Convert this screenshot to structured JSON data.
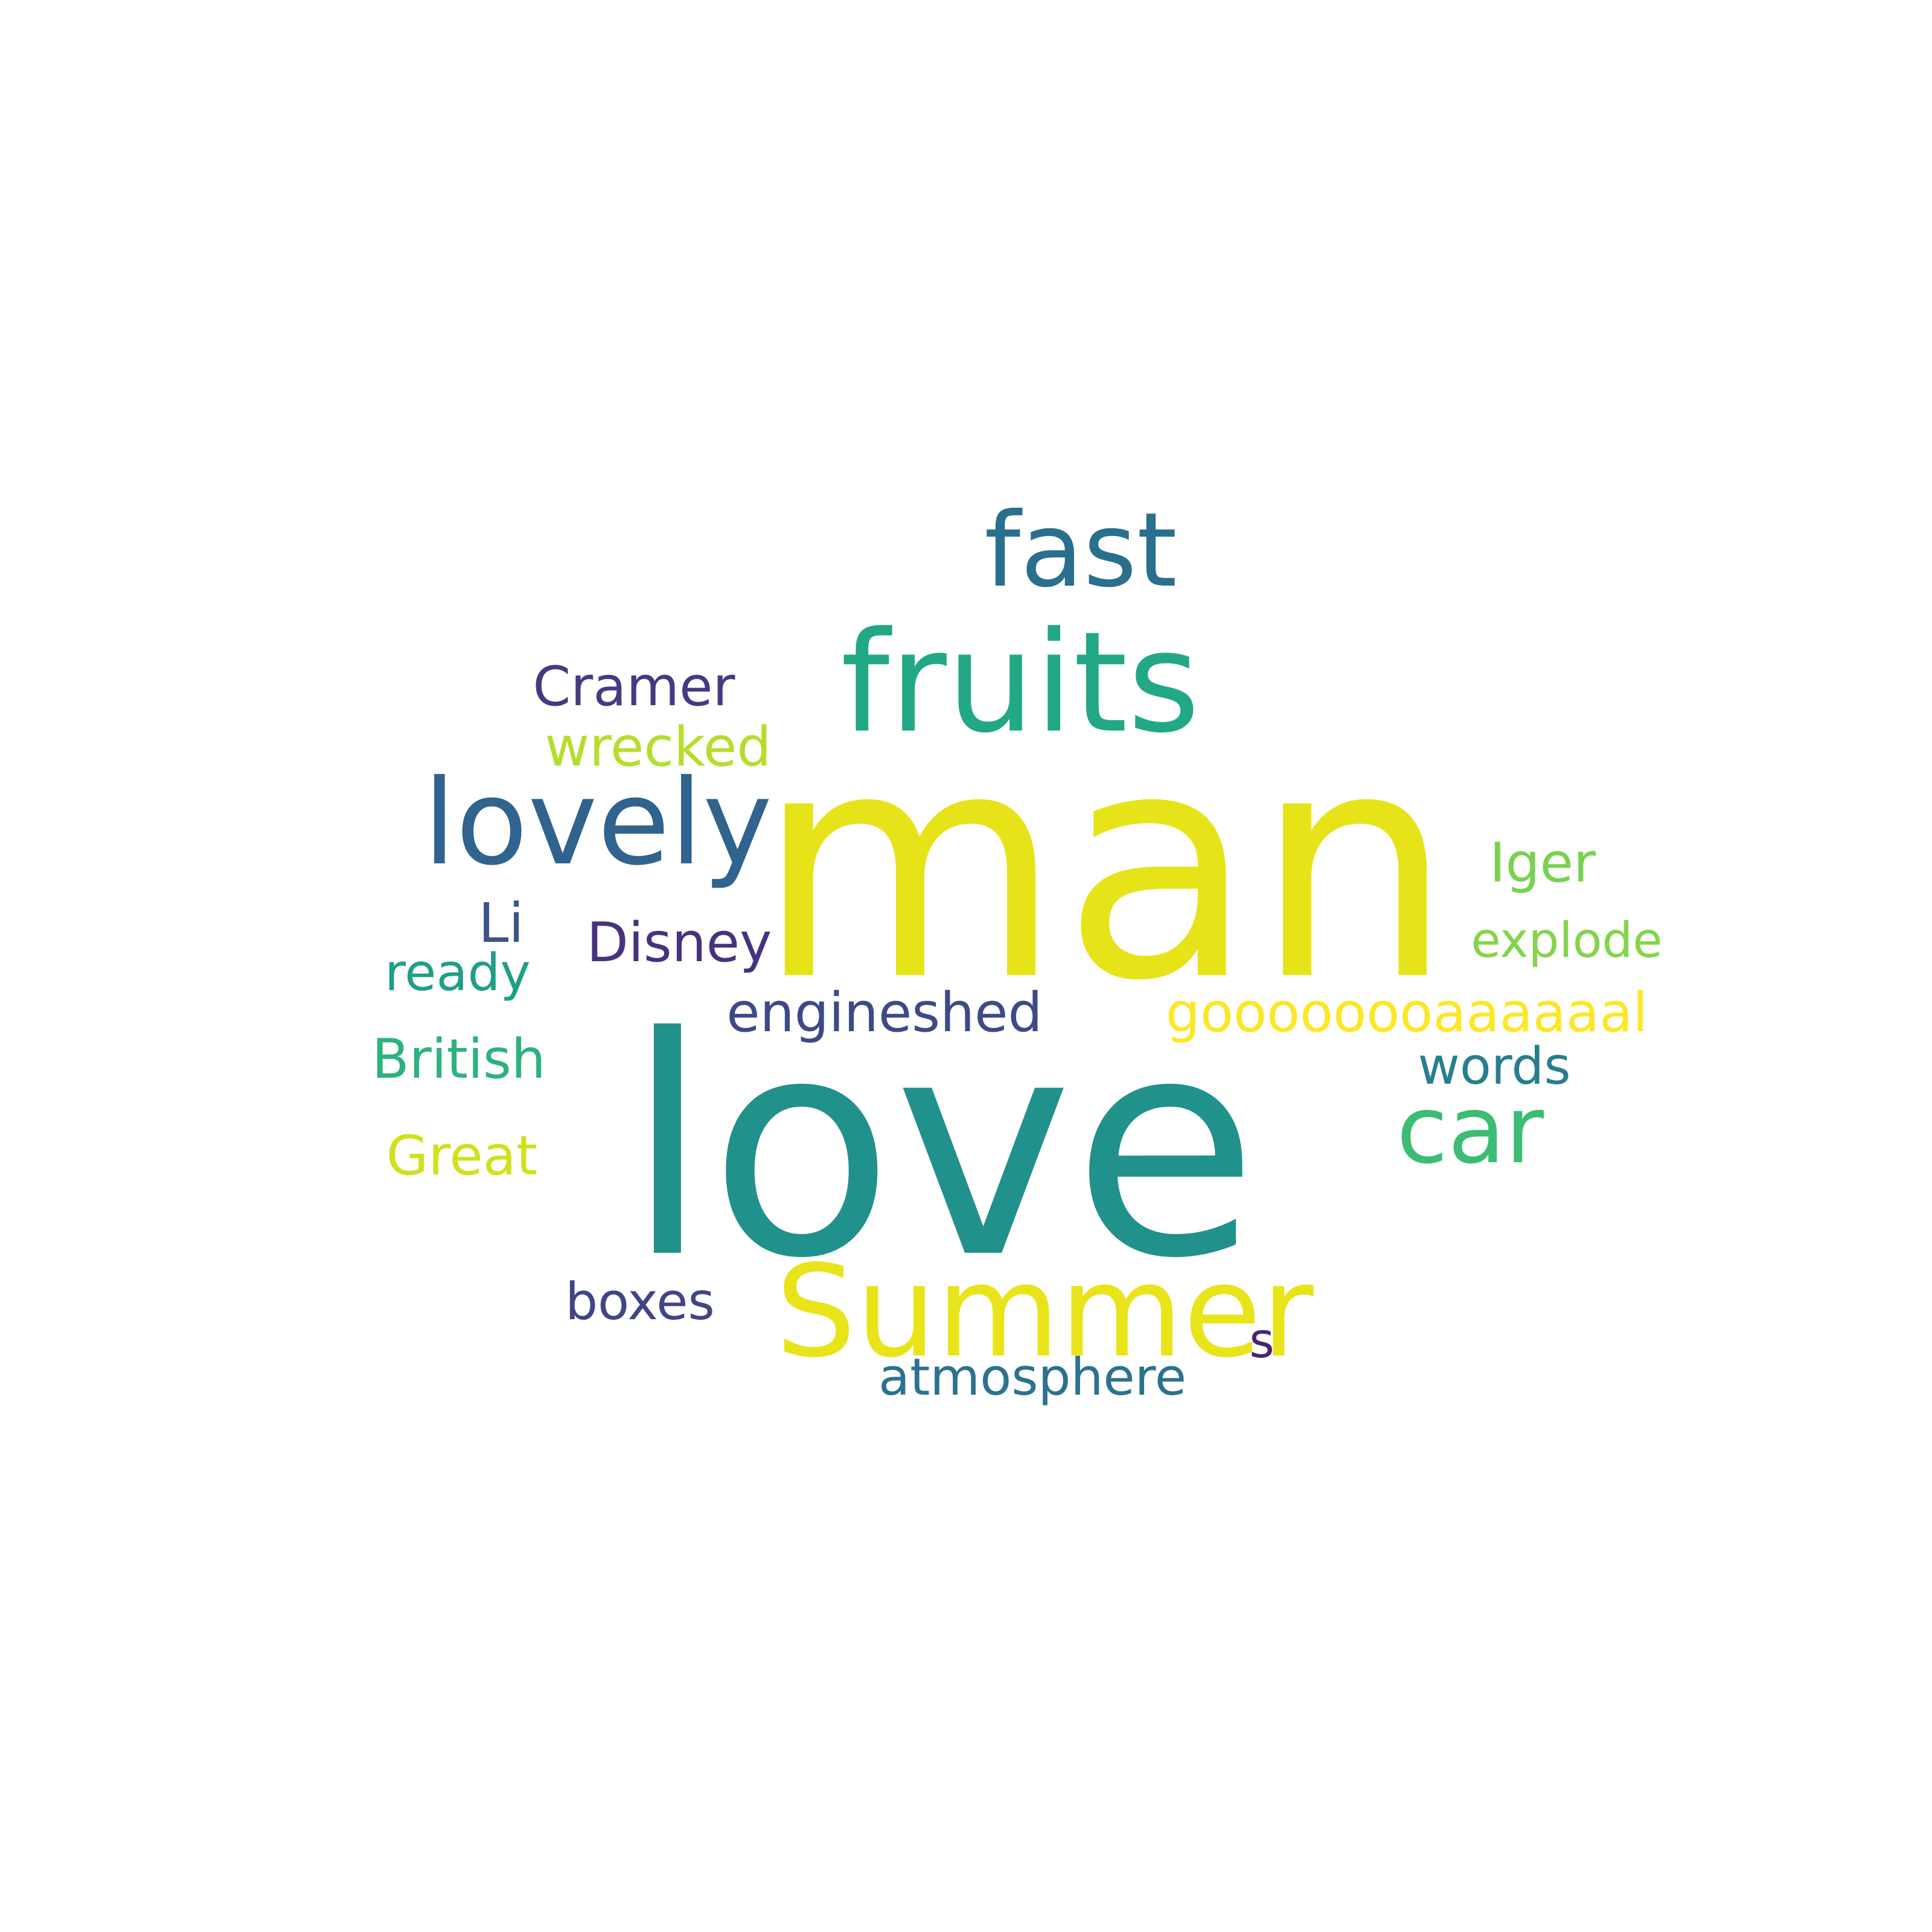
{
  "word_cloud": {
    "words": [
      {
        "text": "man",
        "color": "#e6e419"
      },
      {
        "text": "love",
        "color": "#21918c"
      },
      {
        "text": "fruits",
        "color": "#22a884"
      },
      {
        "text": "fast",
        "color": "#2a6f8e"
      },
      {
        "text": "lovely",
        "color": "#30638e"
      },
      {
        "text": "Summer",
        "color": "#e8e419"
      },
      {
        "text": "car",
        "color": "#3cbc74"
      },
      {
        "text": "Cramer",
        "color": "#443a83"
      },
      {
        "text": "wrecked",
        "color": "#b5de2b"
      },
      {
        "text": "Iger",
        "color": "#7ad151"
      },
      {
        "text": "Li",
        "color": "#3b528b"
      },
      {
        "text": "Disney",
        "color": "#46327e"
      },
      {
        "text": "explode",
        "color": "#84d44b"
      },
      {
        "text": "ready",
        "color": "#1f9e89"
      },
      {
        "text": "engineshed",
        "color": "#3e4989"
      },
      {
        "text": "goooooooaaaaaal",
        "color": "#fde725"
      },
      {
        "text": "British",
        "color": "#2db27d"
      },
      {
        "text": "words",
        "color": "#277f8e"
      },
      {
        "text": "Great",
        "color": "#d0e11c"
      },
      {
        "text": "boxes",
        "color": "#414487"
      },
      {
        "text": "s",
        "color": "#482475"
      },
      {
        "text": "atmosphere",
        "color": "#2c728e"
      }
    ]
  }
}
